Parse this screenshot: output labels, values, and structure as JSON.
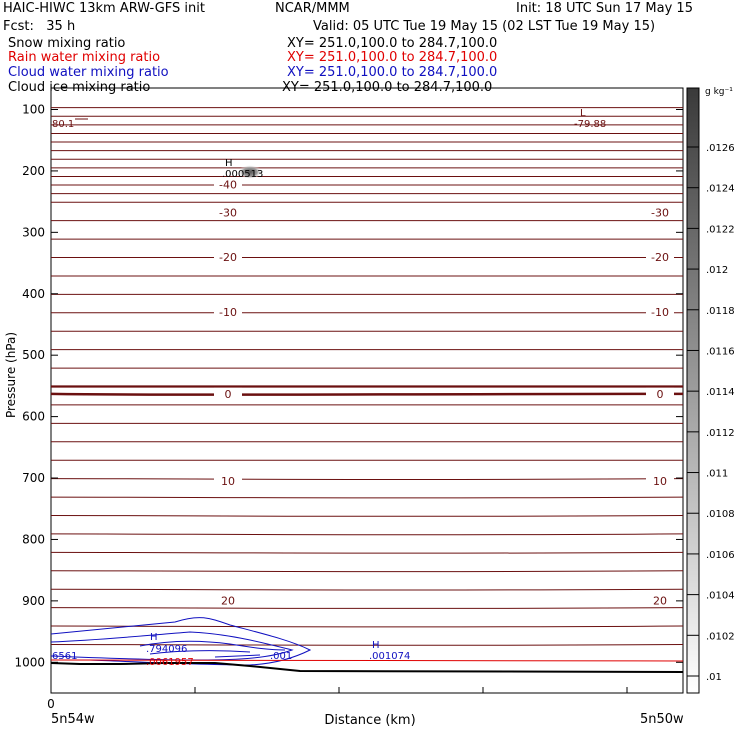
{
  "header": {
    "title_left": "HAIC-HIWC 13km ARW-GFS init",
    "org": "NCAR/MMM",
    "init": "Init: 18 UTC Sun 17 May 15",
    "fcst": "Fcst:   35 h",
    "valid": "Valid: 05 UTC Tue 19 May 15 (02 LST Tue 19 May 15)",
    "fields": [
      {
        "name": "Snow mixing ratio",
        "xy": "XY= 251.0,100.0 to 284.7,100.0",
        "color": "#000000"
      },
      {
        "name": "Rain water mixing ratio",
        "xy": "XY= 251.0,100.0 to 284.7,100.0",
        "color": "#e00000"
      },
      {
        "name": "Cloud water mixing ratio",
        "xy": "XY= 251.0,100.0 to 284.7,100.0",
        "color": "#1010c0"
      },
      {
        "name": "Cloud ice mixing ratio",
        "xy": "XY= 251.0,100.0 to 284.7,100.0",
        "color": "#000000"
      }
    ]
  },
  "chart_data": {
    "type": "contour-cross-section",
    "xlabel": "Distance (km)",
    "ylabel": "Pressure (hPa)",
    "x_ticks": [
      "0"
    ],
    "x_endpoints": [
      "5n54w",
      "5n50w"
    ],
    "y_ticks": [
      100,
      200,
      300,
      400,
      500,
      600,
      700,
      800,
      900,
      1000
    ],
    "ylim": [
      1050,
      65
    ],
    "colorbar": {
      "unit": "g kg⁻¹",
      "labels": [
        ".0126",
        ".0124",
        ".0122",
        ".012",
        ".0118",
        ".0116",
        ".0114",
        ".0112",
        ".011",
        ".0108",
        ".0106",
        ".0104",
        ".0102",
        ".01"
      ],
      "gradient_from": "#ffffff",
      "gradient_to": "#3a3a3a"
    },
    "temperature_contours": {
      "color": "#6b1010",
      "labels": [
        {
          "text": "-40",
          "p": 222
        },
        {
          "text": "-30",
          "p": 268
        },
        {
          "text": "-20",
          "p": 340
        },
        {
          "text": "-10",
          "p": 430
        },
        {
          "text": "0",
          "p": 563
        },
        {
          "text": "10",
          "p": 705
        },
        {
          "text": "20",
          "p": 899
        }
      ]
    },
    "annotations": [
      {
        "mark": "H",
        "value": ".000513",
        "color": "#000000"
      },
      {
        "mark": "L",
        "value": "-79.88",
        "color": "#6b1010"
      },
      {
        "mark": "",
        "value": "80.1",
        "color": "#6b1010"
      },
      {
        "mark": "H",
        "value": ".001074",
        "color": "#1010c0"
      },
      {
        "mark": "H",
        "value": ".794096",
        "color": "#1010c0"
      },
      {
        "mark": "",
        "value": ".0061957",
        "color": "#e00000"
      },
      {
        "mark": "",
        "value": ".001",
        "color": "#1010c0"
      },
      {
        "mark": "",
        "value": "6561",
        "color": "#1010c0"
      }
    ]
  }
}
